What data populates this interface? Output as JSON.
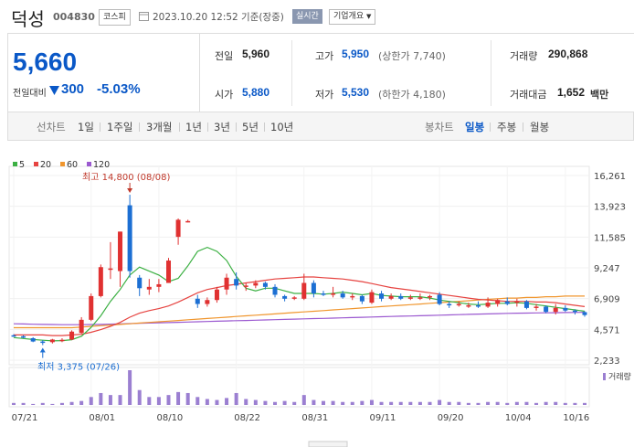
{
  "header": {
    "stock_name": "덕성",
    "stock_code": "004830",
    "market": "코스피",
    "timestamp": "2023.10.20 12:52 기준(장중)",
    "realtime_label": "실시간",
    "company_overview_label": "기업개요"
  },
  "price": {
    "current": "5,660",
    "change_label": "전일대비",
    "change_amount": "300",
    "change_rate": "-5.03%",
    "direction": "down",
    "down_color": "#0a58c7"
  },
  "quote": {
    "prev_close_label": "전일",
    "prev_close": "5,960",
    "high_label": "고가",
    "high": "5,950",
    "upper_limit": "(상한가 7,740)",
    "volume_label": "거래량",
    "volume": "290,868",
    "open_label": "시가",
    "open": "5,880",
    "low_label": "저가",
    "low": "5,530",
    "lower_limit": "(하한가 4,180)",
    "value_label": "거래대금",
    "value": "1,652",
    "value_unit": "백만"
  },
  "periods": {
    "line_chart_label": "선차트",
    "line_options": [
      "1일",
      "1주일",
      "3개월",
      "1년",
      "3년",
      "5년",
      "10년"
    ],
    "candle_chart_label": "봉차트",
    "candle_options": [
      "일봉",
      "주봉",
      "월봉"
    ],
    "active_candle": "일봉"
  },
  "chart_data": {
    "type": "candlestick",
    "legend": [
      {
        "name": "5",
        "color": "#3cb043"
      },
      {
        "name": "20",
        "color": "#e64340"
      },
      {
        "name": "60",
        "color": "#f0962e"
      },
      {
        "name": "120",
        "color": "#9b59d0"
      }
    ],
    "y_ticks": [
      "16,261",
      "13,923",
      "11,585",
      "9,247",
      "6,909",
      "4,571",
      "2,233"
    ],
    "ylim": [
      2233,
      16261
    ],
    "x_ticks": [
      "07/21",
      "08/01",
      "08/10",
      "08/22",
      "08/31",
      "09/11",
      "09/20",
      "10/04",
      "10/16"
    ],
    "annotations": {
      "high": "최고 14,800 (08/08)",
      "low": "최저 3,375 (07/26)"
    },
    "volume_label": "거래량",
    "up_color": "#e03131",
    "down_color": "#1c6fd3",
    "candles": [
      {
        "o": 4120,
        "h": 4200,
        "l": 4000,
        "c": 4100
      },
      {
        "o": 4050,
        "h": 4130,
        "l": 3900,
        "c": 3950
      },
      {
        "o": 3900,
        "h": 3980,
        "l": 3600,
        "c": 3650
      },
      {
        "o": 3650,
        "h": 3750,
        "l": 3375,
        "c": 3600
      },
      {
        "o": 3600,
        "h": 3850,
        "l": 3500,
        "c": 3800
      },
      {
        "o": 3700,
        "h": 3900,
        "l": 3600,
        "c": 3780
      },
      {
        "o": 3800,
        "h": 4500,
        "l": 3750,
        "c": 4400
      },
      {
        "o": 4300,
        "h": 5500,
        "l": 4250,
        "c": 5300
      },
      {
        "o": 5300,
        "h": 7300,
        "l": 5200,
        "c": 7100
      },
      {
        "o": 7100,
        "h": 9500,
        "l": 7000,
        "c": 9300
      },
      {
        "o": 9200,
        "h": 11200,
        "l": 8400,
        "c": 9200
      },
      {
        "o": 9000,
        "h": 12000,
        "l": 7800,
        "c": 12000
      },
      {
        "o": 14000,
        "h": 14800,
        "l": 8500,
        "c": 9000
      },
      {
        "o": 8500,
        "h": 8700,
        "l": 7100,
        "c": 7700
      },
      {
        "o": 7600,
        "h": 8400,
        "l": 7200,
        "c": 7800
      },
      {
        "o": 7800,
        "h": 8400,
        "l": 7400,
        "c": 8000
      },
      {
        "o": 8100,
        "h": 10000,
        "l": 8100,
        "c": 9800
      },
      {
        "o": 11600,
        "h": 13000,
        "l": 11000,
        "c": 12900
      },
      {
        "o": 12800,
        "h": 12900,
        "l": 12700,
        "c": 12800
      },
      {
        "o": 6900,
        "h": 7200,
        "l": 6200,
        "c": 6500
      },
      {
        "o": 6500,
        "h": 7000,
        "l": 6300,
        "c": 6800
      },
      {
        "o": 6800,
        "h": 7800,
        "l": 6600,
        "c": 7600
      },
      {
        "o": 7600,
        "h": 8800,
        "l": 7200,
        "c": 8500
      },
      {
        "o": 8400,
        "h": 8900,
        "l": 7600,
        "c": 7900
      },
      {
        "o": 7900,
        "h": 8100,
        "l": 7500,
        "c": 7900
      },
      {
        "o": 7900,
        "h": 8300,
        "l": 7700,
        "c": 8100
      },
      {
        "o": 8100,
        "h": 8200,
        "l": 7600,
        "c": 7800
      },
      {
        "o": 7800,
        "h": 8000,
        "l": 7000,
        "c": 7200
      },
      {
        "o": 7100,
        "h": 7200,
        "l": 6700,
        "c": 6900
      },
      {
        "o": 6900,
        "h": 7100,
        "l": 6800,
        "c": 7000
      },
      {
        "o": 6900,
        "h": 8800,
        "l": 6800,
        "c": 8100
      },
      {
        "o": 8100,
        "h": 8300,
        "l": 7000,
        "c": 7300
      },
      {
        "o": 7300,
        "h": 7500,
        "l": 7100,
        "c": 7200
      },
      {
        "o": 7200,
        "h": 7800,
        "l": 7000,
        "c": 7300
      },
      {
        "o": 7300,
        "h": 7500,
        "l": 6900,
        "c": 7000
      },
      {
        "o": 7000,
        "h": 7300,
        "l": 6800,
        "c": 7100
      },
      {
        "o": 7100,
        "h": 7200,
        "l": 6500,
        "c": 6700
      },
      {
        "o": 6600,
        "h": 7600,
        "l": 6500,
        "c": 7400
      },
      {
        "o": 7300,
        "h": 7500,
        "l": 6700,
        "c": 6900
      },
      {
        "o": 6900,
        "h": 7300,
        "l": 6800,
        "c": 7100
      },
      {
        "o": 7100,
        "h": 7300,
        "l": 6800,
        "c": 6900
      },
      {
        "o": 6900,
        "h": 7200,
        "l": 6800,
        "c": 7000
      },
      {
        "o": 7000,
        "h": 7300,
        "l": 6800,
        "c": 7000
      },
      {
        "o": 7000,
        "h": 7200,
        "l": 6800,
        "c": 7100
      },
      {
        "o": 7200,
        "h": 7400,
        "l": 6400,
        "c": 6500
      },
      {
        "o": 6500,
        "h": 6700,
        "l": 6200,
        "c": 6400
      },
      {
        "o": 6400,
        "h": 6700,
        "l": 6300,
        "c": 6500
      },
      {
        "o": 6400,
        "h": 6600,
        "l": 6200,
        "c": 6400
      },
      {
        "o": 6400,
        "h": 6700,
        "l": 6200,
        "c": 6300
      },
      {
        "o": 6300,
        "h": 7000,
        "l": 6200,
        "c": 6600
      },
      {
        "o": 6500,
        "h": 6900,
        "l": 6300,
        "c": 6800
      },
      {
        "o": 6700,
        "h": 7000,
        "l": 6400,
        "c": 6500
      },
      {
        "o": 6600,
        "h": 6900,
        "l": 6300,
        "c": 6700
      },
      {
        "o": 6700,
        "h": 6800,
        "l": 6100,
        "c": 6200
      },
      {
        "o": 6200,
        "h": 6500,
        "l": 6000,
        "c": 6300
      },
      {
        "o": 6300,
        "h": 6400,
        "l": 5800,
        "c": 5900
      },
      {
        "o": 5900,
        "h": 6500,
        "l": 5700,
        "c": 6200
      },
      {
        "o": 6200,
        "h": 6400,
        "l": 5900,
        "c": 6000
      },
      {
        "o": 6000,
        "h": 6100,
        "l": 5700,
        "c": 5960
      },
      {
        "o": 5880,
        "h": 5950,
        "l": 5530,
        "c": 5660
      }
    ],
    "volume": [
      2,
      2,
      1,
      2,
      1,
      2,
      3,
      4,
      8,
      12,
      10,
      10,
      35,
      15,
      8,
      8,
      10,
      13,
      12,
      8,
      6,
      5,
      7,
      12,
      6,
      5,
      4,
      3,
      4,
      3,
      10,
      5,
      4,
      4,
      3,
      3,
      4,
      5,
      3,
      3,
      3,
      3,
      3,
      3,
      5,
      3,
      3,
      2,
      2,
      3,
      3,
      2,
      3,
      3,
      2,
      3,
      3,
      2,
      2,
      2
    ],
    "ma5": [
      3950,
      3880,
      3800,
      3750,
      3700,
      3720,
      3790,
      4050,
      4720,
      5600,
      6700,
      7600,
      8700,
      9300,
      9000,
      8700,
      8200,
      8450,
      9400,
      10500,
      10800,
      10500,
      9800,
      8600,
      7700,
      7500,
      7700,
      7700,
      7500,
      7300,
      7300,
      7300,
      7250,
      7300,
      7400,
      7300,
      7200,
      7300,
      7150,
      7100,
      7050,
      7050,
      7050,
      6950,
      6800,
      6700,
      6600,
      6500,
      6450,
      6500,
      6550,
      6550,
      6600,
      6550,
      6450,
      6350,
      6250,
      6150,
      6050,
      5950
    ],
    "ma20": [
      4150,
      4150,
      4150,
      4150,
      4100,
      4100,
      4150,
      4200,
      4350,
      4550,
      4800,
      5100,
      5500,
      5800,
      6000,
      6150,
      6350,
      6650,
      7000,
      7350,
      7600,
      7750,
      7900,
      8000,
      8100,
      8200,
      8300,
      8400,
      8450,
      8500,
      8550,
      8550,
      8500,
      8450,
      8400,
      8300,
      8200,
      8050,
      7900,
      7750,
      7650,
      7550,
      7450,
      7350,
      7250,
      7150,
      7050,
      6950,
      6850,
      6800,
      6750,
      6700,
      6700,
      6700,
      6650,
      6650,
      6600,
      6500,
      6400,
      6300
    ],
    "ma60": [
      4700,
      4700,
      4700,
      4700,
      4700,
      4700,
      4700,
      4750,
      4800,
      4850,
      4900,
      4950,
      5000,
      5050,
      5100,
      5150,
      5200,
      5250,
      5300,
      5350,
      5400,
      5450,
      5500,
      5550,
      5600,
      5650,
      5700,
      5750,
      5800,
      5850,
      5900,
      5950,
      6000,
      6050,
      6100,
      6150,
      6200,
      6250,
      6300,
      6350,
      6400,
      6450,
      6500,
      6550,
      6600,
      6650,
      6700,
      6750,
      6800,
      6850,
      6900,
      6950,
      6950,
      7000,
      7000,
      7050,
      7050,
      7100,
      7100,
      7100
    ],
    "ma120": [
      5000,
      4980,
      4960,
      4950,
      4940,
      4930,
      4930,
      4930,
      4940,
      4950,
      4970,
      4990,
      5010,
      5030,
      5050,
      5070,
      5090,
      5110,
      5130,
      5150,
      5170,
      5190,
      5210,
      5230,
      5250,
      5270,
      5290,
      5310,
      5330,
      5350,
      5370,
      5390,
      5410,
      5430,
      5450,
      5470,
      5490,
      5510,
      5530,
      5550,
      5570,
      5590,
      5610,
      5630,
      5650,
      5670,
      5690,
      5710,
      5730,
      5750,
      5770,
      5790,
      5800,
      5810,
      5820,
      5830,
      5840,
      5850,
      5860,
      5870
    ]
  }
}
